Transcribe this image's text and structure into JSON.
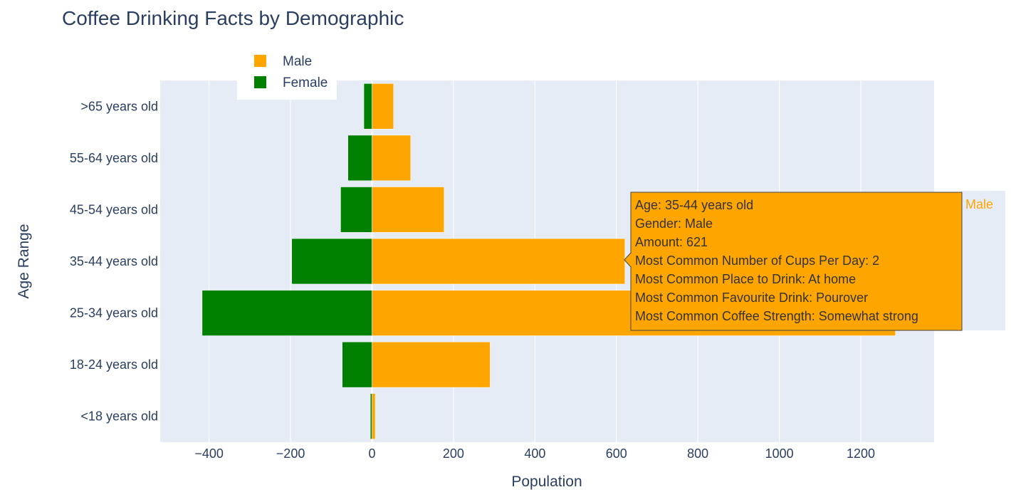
{
  "chart_data": {
    "type": "bar",
    "orientation": "horizontal",
    "title": "Coffee Drinking Facts by Demographic",
    "xlabel": "Population",
    "ylabel": "Age Range",
    "xlim": [
      -520,
      1380
    ],
    "x_ticks": [
      -400,
      -200,
      0,
      200,
      400,
      600,
      800,
      1000,
      1200
    ],
    "x_tick_labels": [
      "−400",
      "−200",
      "0",
      "200",
      "400",
      "600",
      "800",
      "1000",
      "1200"
    ],
    "categories": [
      "<18 years old",
      "18-24 years old",
      "25-34 years old",
      "35-44 years old",
      "45-54 years old",
      "55-64 years old",
      ">65 years old"
    ],
    "series": [
      {
        "name": "Male",
        "color": "#FFA500",
        "values": [
          8,
          290,
          1285,
          621,
          177,
          95,
          53
        ]
      },
      {
        "name": "Female",
        "color": "#008000",
        "values": [
          -4,
          -73,
          -417,
          -197,
          -77,
          -59,
          -20
        ]
      }
    ],
    "legend": {
      "position": "top-left",
      "entries": [
        "Male",
        "Female"
      ]
    },
    "grid": true,
    "plot_background": "#E5ECF6",
    "tooltip": {
      "series_tag": "Male",
      "lines": [
        "Age: 35-44 years old",
        "Gender: Male",
        "Amount: 621",
        "Most Common Number of Cups Per Day: 2",
        "Most Common Place to Drink: At home",
        "Most Common Favourite Drink: Pourover",
        "Most Common Coffee Strength: Somewhat strong"
      ]
    }
  }
}
